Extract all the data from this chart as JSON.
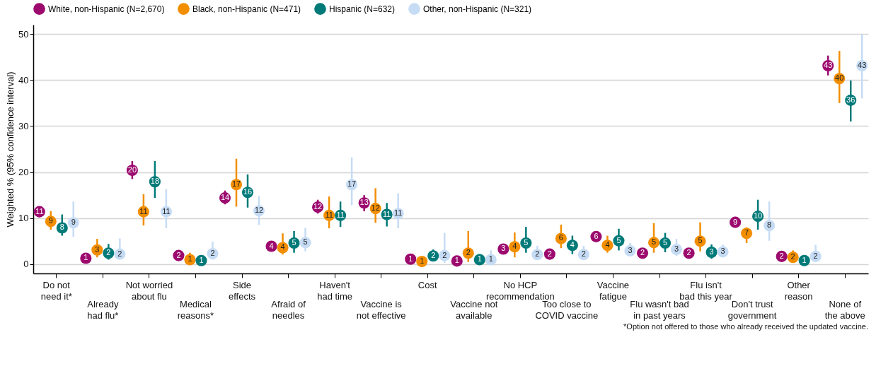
{
  "chart_data": {
    "type": "scatter",
    "ylabel": "Weighted % (95% confidence interval)",
    "categories": [
      "Do not need it*",
      "Already had flu*",
      "Not worried about flu",
      "Medical reasons*",
      "Side effects",
      "Afraid of needles",
      "Haven't had time",
      "Vaccine is not effective",
      "Cost",
      "Vaccine not available",
      "No HCP recommendation",
      "Too close to COVID vaccine",
      "Vaccine fatigue",
      "Flu wasn't bad in past years",
      "Flu isn't bad this year",
      "Don't trust government",
      "Other reason",
      "None of the above"
    ],
    "series": [
      {
        "name": "White, non-Hispanic (N=2,670)",
        "color": "#9c0a6e",
        "values": [
          11.4,
          1.3,
          20.4,
          1.9,
          14.4,
          3.9,
          12.4,
          13.3,
          1.1,
          0.7,
          3.3,
          2.2,
          6.0,
          2.4,
          2.4,
          9.1,
          1.7,
          43.1
        ],
        "errors": [
          [
            10.2,
            12.6
          ],
          [
            0.8,
            1.9
          ],
          [
            18.5,
            22.4
          ],
          [
            1.2,
            3.0
          ],
          [
            13,
            16
          ],
          [
            2.9,
            5
          ],
          [
            11,
            14
          ],
          [
            11.5,
            15
          ],
          [
            0.6,
            1.7
          ],
          [
            0.3,
            1.2
          ],
          [
            2.5,
            4.3
          ],
          [
            1.6,
            2.9
          ],
          [
            5,
            7
          ],
          [
            1.8,
            3.2
          ],
          [
            1.8,
            3.2
          ],
          [
            8,
            10.3
          ],
          [
            1.2,
            2.3
          ],
          [
            41,
            45.3
          ]
        ],
        "value_labels": [
          "11",
          "1",
          "20",
          "2",
          "14",
          "4",
          "12",
          "13",
          "1",
          "1",
          "3",
          "2",
          "6",
          "2",
          "2",
          "9",
          "2",
          "43"
        ]
      },
      {
        "name": "Black, non-Hispanic (N=471)",
        "color": "#f28e00",
        "values": [
          9.3,
          3.1,
          11.4,
          1.0,
          17.3,
          3.6,
          10.6,
          12.1,
          0.6,
          2.4,
          3.8,
          5.6,
          4.1,
          4.7,
          5.0,
          6.7,
          1.5,
          40.3
        ],
        "errors": [
          [
            7.5,
            11.5
          ],
          [
            1.5,
            5.5
          ],
          [
            8.4,
            15.2
          ],
          [
            0.3,
            2.5
          ],
          [
            12.5,
            22.9
          ],
          [
            2.1,
            6.7
          ],
          [
            7.8,
            14.7
          ],
          [
            9.0,
            16.5
          ],
          [
            0.1,
            1.5
          ],
          [
            0.5,
            7.2
          ],
          [
            1.5,
            6.9
          ],
          [
            3.5,
            8.6
          ],
          [
            2.5,
            6.2
          ],
          [
            2.5,
            8.9
          ],
          [
            2.8,
            9.1
          ],
          [
            4.6,
            8
          ],
          [
            0.5,
            3
          ],
          [
            35,
            46.3
          ]
        ],
        "value_labels": [
          "9",
          "3",
          "11",
          "1",
          "17",
          "4",
          "11",
          "12",
          "1",
          "2",
          "4",
          "6",
          "4",
          "5",
          "5",
          "7",
          "2",
          "40"
        ]
      },
      {
        "name": "Hispanic (N=632)",
        "color": "#007a78",
        "values": [
          7.9,
          2.4,
          17.9,
          0.8,
          15.6,
          4.6,
          10.6,
          10.8,
          1.8,
          1.0,
          4.6,
          4.1,
          5.1,
          4.6,
          2.6,
          10.4,
          0.8,
          35.6
        ],
        "errors": [
          [
            6.2,
            10.8
          ],
          [
            1.0,
            4.4
          ],
          [
            14.4,
            22.4
          ],
          [
            0.3,
            2.0
          ],
          [
            12.3,
            19.5
          ],
          [
            2.5,
            7.2
          ],
          [
            8.1,
            13.6
          ],
          [
            8.2,
            13.3
          ],
          [
            0.8,
            3.2
          ],
          [
            0.3,
            2.2
          ],
          [
            2.5,
            8.1
          ],
          [
            2.2,
            6.2
          ],
          [
            3,
            7.7
          ],
          [
            2.6,
            6.8
          ],
          [
            1.2,
            4.3
          ],
          [
            7.5,
            14
          ],
          [
            0.2,
            2
          ],
          [
            31,
            39.9
          ]
        ],
        "value_labels": [
          "8",
          "2",
          "18",
          "1",
          "16",
          "5",
          "11",
          "11",
          "2",
          "1",
          "5",
          "4",
          "5",
          "5",
          "3",
          "10",
          "1",
          "36"
        ]
      },
      {
        "name": "Other, non-Hispanic (N=321)",
        "color": "#c6dcf5",
        "values": [
          9.0,
          2.2,
          11.4,
          2.3,
          11.6,
          4.7,
          17.3,
          11.0,
          1.9,
          1.0,
          2.1,
          2.1,
          2.9,
          3.2,
          2.7,
          8.4,
          1.7,
          43.1
        ],
        "errors": [
          [
            5.9,
            13.6
          ],
          [
            1.3,
            5.6
          ],
          [
            7.8,
            16.3
          ],
          [
            1.0,
            4.9
          ],
          [
            8.5,
            14.8
          ],
          [
            2.8,
            7.9
          ],
          [
            12.8,
            23.2
          ],
          [
            7.8,
            15.4
          ],
          [
            0.3,
            6.8
          ],
          [
            0.3,
            3
          ],
          [
            1,
            4
          ],
          [
            1,
            4
          ],
          [
            1.8,
            4.6
          ],
          [
            1.8,
            5.5
          ],
          [
            1.6,
            4.3
          ],
          [
            5.1,
            13.6
          ],
          [
            0.5,
            4.2
          ],
          [
            36,
            49.9
          ]
        ],
        "value_labels": [
          "9",
          "2",
          "11",
          "2",
          "12",
          "5",
          "17",
          "11",
          "2",
          "1",
          "2",
          "2",
          "3",
          "3",
          "3",
          "8",
          "2",
          "43"
        ]
      }
    ],
    "ylim": [
      -2,
      52
    ],
    "yticks": [
      0,
      10,
      20,
      30,
      40,
      50
    ],
    "grid": "y",
    "legend": "top",
    "marker": "circle",
    "annotations": [
      "*Option not offered to those who already received the updated vaccine."
    ]
  }
}
